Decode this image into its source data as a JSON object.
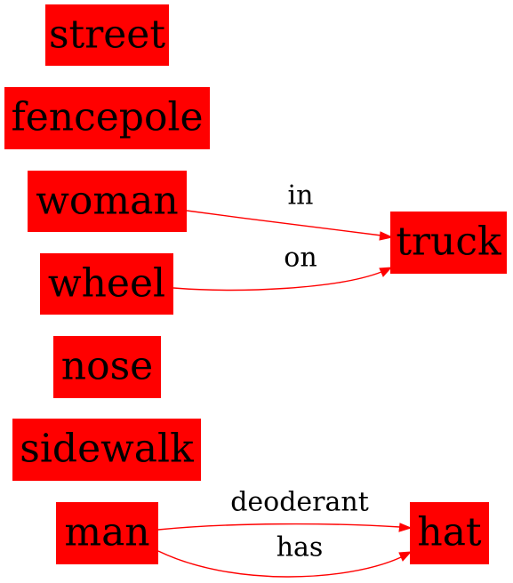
{
  "graph": {
    "nodes": {
      "street": "street",
      "fencepole": "fencepole",
      "woman": "woman",
      "wheel": "wheel",
      "nose": "nose",
      "sidewalk": "sidewalk",
      "man": "man",
      "truck": "truck",
      "hat": "hat"
    },
    "edges": {
      "woman_truck": {
        "from": "woman",
        "to": "truck",
        "label": "in"
      },
      "wheel_truck": {
        "from": "wheel",
        "to": "truck",
        "label": "on"
      },
      "man_hat_deoderant": {
        "from": "man",
        "to": "hat",
        "label": "deoderant"
      },
      "man_hat_has": {
        "from": "man",
        "to": "hat",
        "label": "has"
      }
    }
  },
  "colors": {
    "node_fill": "#ff0000",
    "edge": "#ff0000",
    "text": "#000000"
  }
}
